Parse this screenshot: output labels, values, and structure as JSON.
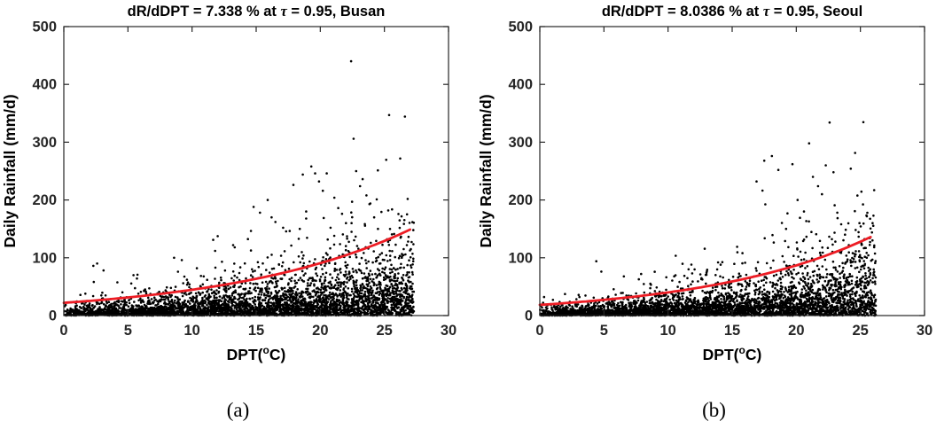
{
  "figure": {
    "captions": [
      "(a)",
      "(b)"
    ]
  },
  "chart_data": [
    {
      "type": "scatter",
      "city": "Busan",
      "title": "dR/dDPT = 7.338 % at τ = 0.95, Busan",
      "title_parts": {
        "prefix": "dR/dDPT = 7.338 % at ",
        "tau": "τ",
        "suffix": " = 0.95, Busan"
      },
      "xlabel_parts": {
        "pre": "DPT(",
        "sup": "o",
        "post": "C)"
      },
      "ylabel": "Daily Rainfall (mm/d)",
      "xlim": [
        0,
        30
      ],
      "ylim": [
        0,
        500
      ],
      "xticks": [
        0,
        5,
        10,
        15,
        20,
        25,
        30
      ],
      "yticks": [
        0,
        100,
        200,
        300,
        400,
        500
      ],
      "grid": false,
      "legend": "none",
      "marker_color": "#000000",
      "curve_color": "#ed1c24",
      "axis_color": "#262626",
      "fit_curve": {
        "type": "exponential",
        "a": 22,
        "b": 0.0708,
        "x_range": [
          0,
          27
        ],
        "tau": 0.95,
        "slope_pct": 7.338
      },
      "scatter_spec": {
        "n": 4200,
        "seed": 20240517,
        "x_max": 27.3,
        "x_pow": 0.82,
        "mean_ratio": 0.33
      },
      "notable_points": [
        [
          2.3,
          86
        ],
        [
          2.6,
          90
        ],
        [
          3.1,
          78
        ],
        [
          8.6,
          100
        ],
        [
          9.2,
          96
        ],
        [
          11.8,
          112
        ],
        [
          13.2,
          122
        ],
        [
          14.8,
          188
        ],
        [
          15.3,
          178
        ],
        [
          15.9,
          200
        ],
        [
          16.2,
          170
        ],
        [
          16.5,
          162
        ],
        [
          17.1,
          152
        ],
        [
          17.9,
          226
        ],
        [
          18.4,
          150
        ],
        [
          18.9,
          180
        ],
        [
          19.3,
          258
        ],
        [
          19.6,
          246
        ],
        [
          19.9,
          232
        ],
        [
          20.2,
          216
        ],
        [
          20.5,
          246
        ],
        [
          20.8,
          152
        ],
        [
          21.1,
          204
        ],
        [
          21.4,
          186
        ],
        [
          21.7,
          176
        ],
        [
          22.0,
          160
        ],
        [
          22.4,
          440
        ],
        [
          22.6,
          306
        ],
        [
          22.8,
          250
        ],
        [
          23.1,
          224
        ],
        [
          23.3,
          236
        ],
        [
          23.6,
          208
        ],
        [
          23.9,
          194
        ],
        [
          24.2,
          170
        ],
        [
          24.5,
          150
        ]
      ]
    },
    {
      "type": "scatter",
      "city": "Seoul",
      "title": "dR/dDPT = 8.0386 % at τ = 0.95, Seoul",
      "title_parts": {
        "prefix": "dR/dDPT = 8.0386 % at ",
        "tau": "τ",
        "suffix": " = 0.95, Seoul"
      },
      "xlabel_parts": {
        "pre": "DPT(",
        "sup": "o",
        "post": "C)"
      },
      "ylabel": "Daily Rainfall (mm/d)",
      "xlim": [
        0,
        30
      ],
      "ylim": [
        0,
        500
      ],
      "xticks": [
        0,
        5,
        10,
        15,
        20,
        25,
        30
      ],
      "yticks": [
        0,
        100,
        200,
        300,
        400,
        500
      ],
      "grid": false,
      "legend": "none",
      "marker_color": "#000000",
      "curve_color": "#ed1c24",
      "axis_color": "#262626",
      "fit_curve": {
        "type": "exponential",
        "a": 18.5,
        "b": 0.0773,
        "x_range": [
          0,
          26
        ],
        "tau": 0.95,
        "slope_pct": 8.0386
      },
      "scatter_spec": {
        "n": 4200,
        "seed": 9150331,
        "x_max": 26.2,
        "x_pow": 0.82,
        "mean_ratio": 0.33
      },
      "notable_points": [
        [
          4.4,
          94
        ],
        [
          4.8,
          76
        ],
        [
          7.9,
          72
        ],
        [
          11.6,
          80
        ],
        [
          13.9,
          92
        ],
        [
          15.8,
          108
        ],
        [
          16.9,
          232
        ],
        [
          17.5,
          268
        ],
        [
          18.1,
          276
        ],
        [
          18.6,
          252
        ],
        [
          19.2,
          150
        ],
        [
          19.7,
          262
        ],
        [
          20.1,
          200
        ],
        [
          20.6,
          180
        ],
        [
          21.0,
          298
        ],
        [
          21.3,
          240
        ],
        [
          21.7,
          224
        ],
        [
          22.0,
          210
        ],
        [
          22.3,
          260
        ],
        [
          22.6,
          334
        ],
        [
          22.9,
          248
        ],
        [
          23.2,
          178
        ],
        [
          23.5,
          158
        ],
        [
          23.8,
          140
        ],
        [
          24.1,
          122
        ],
        [
          24.4,
          108
        ]
      ]
    }
  ]
}
